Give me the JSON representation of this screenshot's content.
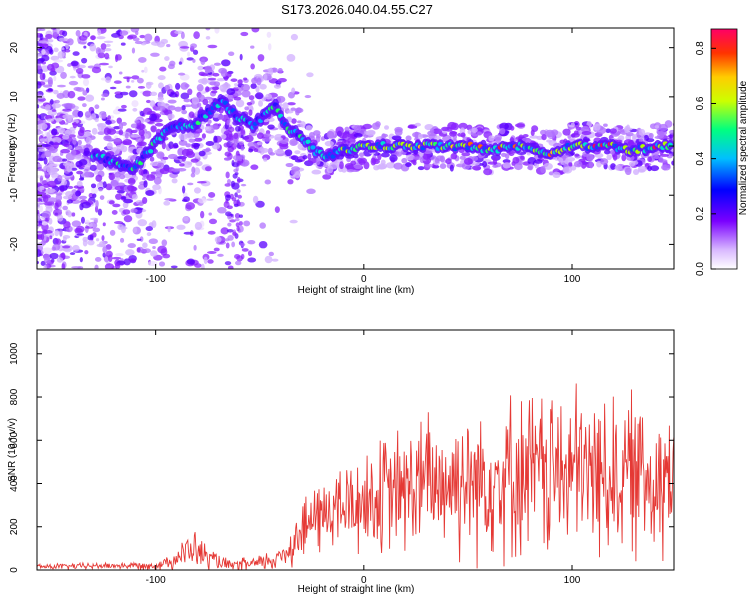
{
  "title": "S173.2026.040.04.55.C27",
  "chart_data": [
    {
      "type": "heatmap",
      "name": "spectrogram",
      "xlabel": "Height of straight line (km)",
      "ylabel": "Frequency (Hz)",
      "xlim": [
        -157,
        149
      ],
      "ylim": [
        -25,
        24
      ],
      "xticks": [
        -100,
        0,
        100
      ],
      "yticks": [
        20,
        10,
        0,
        -10,
        -20
      ],
      "colorbar": {
        "label": "Normalized spectral amplitude",
        "range": [
          0.0,
          0.87
        ],
        "ticks": [
          0.0,
          0.2,
          0.4,
          0.6,
          0.8
        ]
      },
      "ridge": {
        "description": "dominant frequency track (x km, y Hz)",
        "x": [
          -130,
          -120,
          -112,
          -105,
          -98,
          -90,
          -82,
          -75,
          -68,
          -60,
          -54,
          -48,
          -42,
          -36,
          -30,
          -24,
          -18,
          -10,
          0,
          10,
          20,
          30,
          40,
          50,
          60,
          70,
          80,
          90,
          100,
          110,
          120,
          130,
          140,
          148
        ],
        "y": [
          -2,
          -3,
          -5,
          -2,
          2,
          4,
          4,
          7,
          9,
          6,
          4,
          6,
          8,
          3,
          2,
          -1,
          -2,
          -1,
          0,
          0,
          0,
          0,
          0,
          0,
          -1,
          0,
          0,
          -2,
          0,
          0,
          0,
          -1,
          0,
          0
        ]
      }
    },
    {
      "type": "line",
      "name": "snr",
      "xlabel": "Height of straight line (km)",
      "ylabel": "SNR (10 * v/v)",
      "xlim": [
        -157,
        149
      ],
      "ylim": [
        0,
        1110
      ],
      "xticks": [
        -100,
        0,
        100
      ],
      "yticks": [
        0,
        200,
        400,
        600,
        800,
        1000
      ],
      "color": "#e53935",
      "envelope": {
        "description": "approximate SNR level and fluctuation amplitude vs height",
        "x": [
          -157,
          -120,
          -100,
          -92,
          -82,
          -75,
          -65,
          -50,
          -40,
          -32,
          -25,
          -15,
          -5,
          10,
          30,
          50,
          70,
          90,
          110,
          130,
          149
        ],
        "mean": [
          15,
          20,
          20,
          45,
          100,
          55,
          20,
          30,
          60,
          150,
          230,
          280,
          300,
          340,
          400,
          420,
          440,
          450,
          450,
          440,
          440
        ],
        "amp": [
          15,
          15,
          20,
          40,
          90,
          60,
          25,
          40,
          60,
          130,
          170,
          200,
          230,
          280,
          330,
          360,
          380,
          400,
          390,
          380,
          380
        ]
      }
    }
  ]
}
